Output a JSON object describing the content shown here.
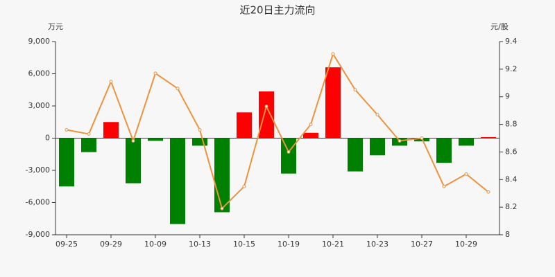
{
  "chart_data": {
    "type": "bar_line",
    "title": "近20日主力流向",
    "y_label": "万元",
    "y2_label": "元/股",
    "categories": [
      "09-25",
      null,
      "09-29",
      null,
      "10-09",
      null,
      "10-13",
      null,
      "10-15",
      null,
      "10-19",
      null,
      "10-21",
      null,
      "10-23",
      null,
      "10-27",
      null,
      "10-29",
      null
    ],
    "series": [
      {
        "type": "bar",
        "positive_color": "#ff0000",
        "negative_color": "#008000",
        "values": [
          -4500,
          -1300,
          1500,
          -4200,
          -250,
          -8000,
          -700,
          -6900,
          2400,
          4350,
          -3300,
          500,
          6600,
          -3100,
          -1600,
          -700,
          -300,
          -2300,
          -700,
          100
        ]
      },
      {
        "type": "line",
        "axis": "y2",
        "color": "#f0913c",
        "values": [
          8.76,
          8.73,
          9.11,
          8.68,
          9.17,
          9.06,
          8.76,
          8.19,
          8.35,
          8.93,
          8.6,
          8.8,
          9.31,
          9.05,
          8.87,
          8.68,
          8.7,
          8.35,
          8.44,
          8.31
        ]
      }
    ],
    "ylim": [
      -9000,
      9000
    ],
    "yticks": [
      {
        "value": -9000,
        "label": "-9,000"
      },
      {
        "value": -6000,
        "label": "-6,000"
      },
      {
        "value": -3000,
        "label": "-3,000"
      },
      0,
      {
        "value": 3000,
        "label": "3,000"
      },
      {
        "value": 6000,
        "label": "6,000"
      },
      {
        "value": 9000,
        "label": "9,000"
      }
    ],
    "y2lim": [
      8,
      9.4
    ],
    "y2ticks": [
      8,
      8.2,
      8.4,
      8.6,
      8.8,
      9,
      9.2,
      9.4
    ],
    "grid": false
  }
}
